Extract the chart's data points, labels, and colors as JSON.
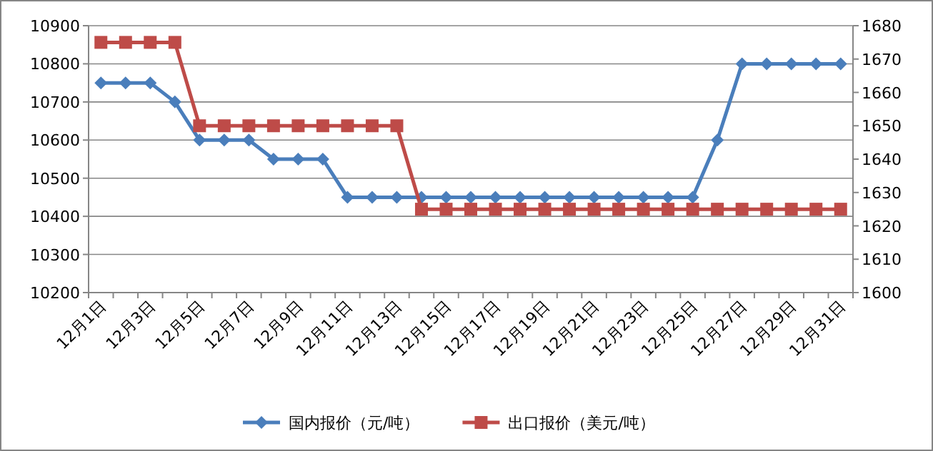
{
  "chart_data": {
    "type": "line",
    "categories": [
      "12月1日",
      null,
      "12月3日",
      null,
      "12月5日",
      null,
      "12月7日",
      null,
      "12月9日",
      null,
      "12月11日",
      null,
      "12月13日",
      null,
      "12月15日",
      null,
      "12月17日",
      null,
      "12月19日",
      null,
      "12月21日",
      null,
      "12月23日",
      null,
      "12月25日",
      null,
      "12月27日",
      null,
      "12月29日",
      null,
      "12月31日"
    ],
    "series": [
      {
        "name": "国内报价（元/吨）",
        "color": "#4a7ebb",
        "marker": "diamond",
        "values": [
          10750,
          10750,
          10750,
          10700,
          10600,
          10600,
          10600,
          10550,
          10550,
          10550,
          10450,
          10450,
          10450,
          10450,
          10450,
          10450,
          10450,
          10450,
          10450,
          10450,
          10450,
          10450,
          10450,
          10450,
          10450,
          10600,
          10800,
          10800,
          10800,
          10800,
          10800
        ]
      },
      {
        "name": "出口报价（美元/吨）",
        "color": "#be4b48",
        "marker": "square",
        "axis": "y2",
        "values": [
          1675,
          1675,
          1675,
          1675,
          1650,
          1650,
          1650,
          1650,
          1650,
          1650,
          1650,
          1650,
          1650,
          1625,
          1625,
          1625,
          1625,
          1625,
          1625,
          1625,
          1625,
          1625,
          1625,
          1625,
          1625,
          1625,
          1625,
          1625,
          1625,
          1625,
          1625
        ]
      }
    ],
    "ylim": [
      10200,
      10900
    ],
    "yticks": [
      10200,
      10300,
      10400,
      10500,
      10600,
      10700,
      10800,
      10900
    ],
    "y2lim": [
      1600,
      1680
    ],
    "y2ticks": [
      1600,
      1610,
      1620,
      1630,
      1640,
      1650,
      1660,
      1670,
      1680
    ],
    "grid": "y",
    "legend": "bottom"
  }
}
